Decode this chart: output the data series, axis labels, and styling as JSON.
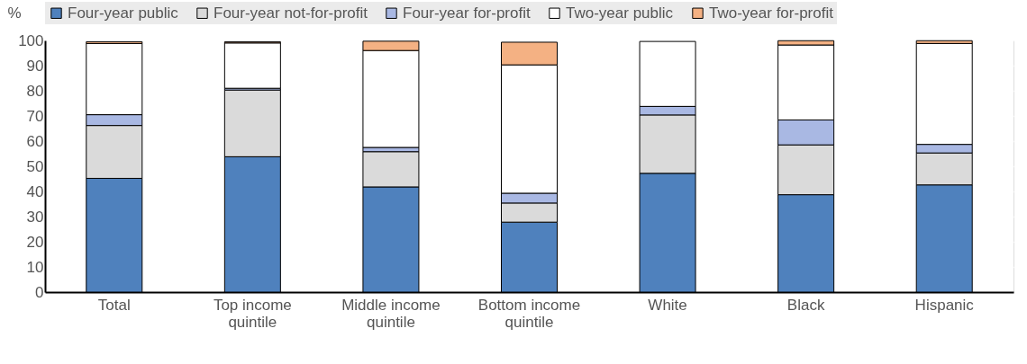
{
  "chart_data": {
    "type": "bar",
    "stacked": true,
    "ylabel": "%",
    "categories": [
      "Total",
      "Top income quintile",
      "Middle income quintile",
      "Bottom income quintile",
      "White",
      "Black",
      "Hispanic"
    ],
    "series": [
      {
        "name": "Four-year public",
        "color": "#4f81bd",
        "values": [
          45.2,
          53.8,
          41.8,
          27.8,
          47.2,
          38.7,
          42.6
        ]
      },
      {
        "name": "Four-year not-for-profit",
        "color": "#dadada",
        "values": [
          21.0,
          26.5,
          14.0,
          7.6,
          23.2,
          19.8,
          12.7
        ]
      },
      {
        "name": "Four-year for-profit",
        "color": "#a9b8e3",
        "values": [
          4.3,
          0.7,
          1.7,
          3.9,
          3.4,
          9.9,
          3.4
        ]
      },
      {
        "name": "Two-year public",
        "color": "#ffffff",
        "values": [
          28.3,
          18.0,
          38.5,
          51.0,
          25.8,
          29.8,
          40.1
        ]
      },
      {
        "name": "Two-year for-profit",
        "color": "#f4b183",
        "values": [
          0.7,
          0.5,
          3.7,
          9.0,
          null,
          1.7,
          1.1
        ]
      }
    ],
    "ylim": [
      0,
      100
    ],
    "yticks": [
      0,
      10,
      20,
      30,
      40,
      50,
      60,
      70,
      80,
      90,
      100
    ],
    "grid": "y",
    "legend": "top"
  }
}
